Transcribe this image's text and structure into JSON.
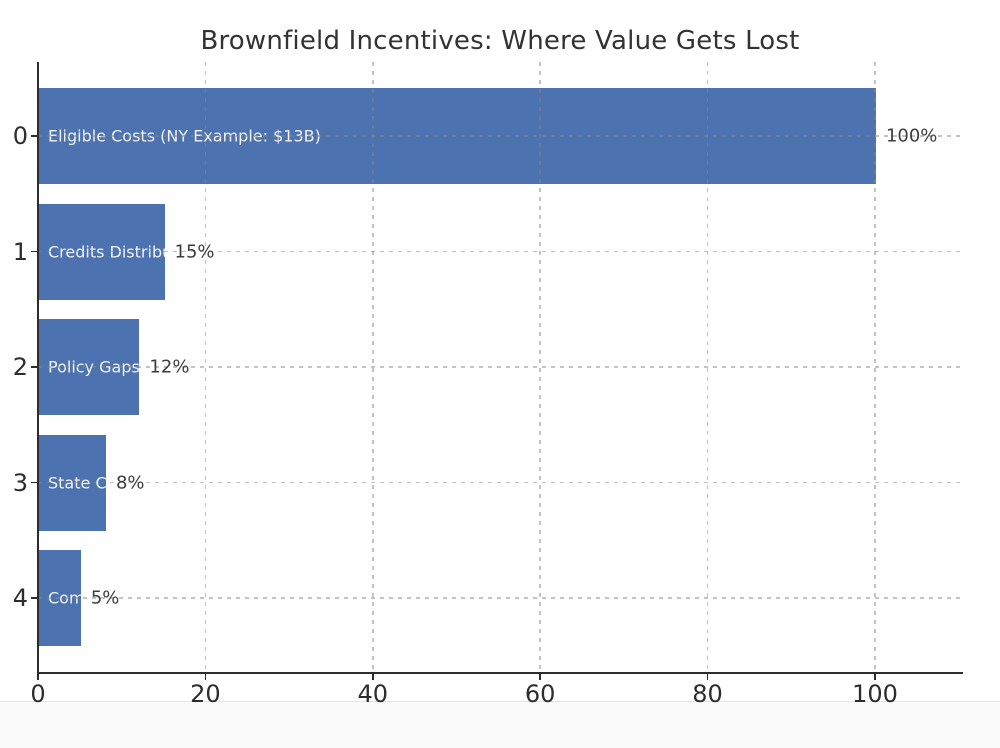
{
  "figure": {
    "background": "#ffffff",
    "axis_color": "#2d2d2d",
    "grid_style": "dashed, both axes, drawn above bars",
    "grid_color": "#878787"
  },
  "chart_data": {
    "type": "bar",
    "orientation": "horizontal",
    "title": "Brownfield Incentives: Where Value Gets Lost",
    "categories": [
      "0",
      "1",
      "2",
      "3",
      "4"
    ],
    "bar_labels": [
      "Eligible Costs (NY Example: $13B)",
      "Credits Distribu",
      "Policy Gaps",
      "State Ca",
      "Comm"
    ],
    "values": [
      100,
      15,
      12,
      8,
      5
    ],
    "value_labels": [
      "100%",
      "15%",
      "12%",
      "8%",
      "5%"
    ],
    "x_ticks": [
      0,
      20,
      40,
      60,
      80,
      100
    ],
    "xlim": [
      0,
      110.4
    ],
    "legend": "none",
    "bar_color": "#4c72b0",
    "bar_label_color": "#f2f2f2",
    "value_label_color": "#3d3d3d",
    "tick_label_color": "#2d2d2d",
    "title_color": "#333333"
  }
}
